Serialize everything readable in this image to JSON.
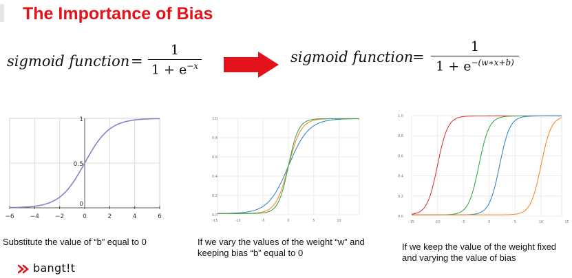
{
  "title": "The Importance of Bias",
  "formula_left": {
    "name": "sigmoid function",
    "eq": "=",
    "numerator": "1",
    "denominator_base": "1 + e",
    "exponent": "−x"
  },
  "formula_right": {
    "name": "sigmoid function",
    "eq": "=",
    "numerator": "1",
    "denominator_base": "1 + e",
    "exponent": "−(w∗x+b)"
  },
  "arrow_color": "#e3121b",
  "captions": [
    "Substitute the value of “b” equal to 0",
    "If we vary the values of the weight “w” and keeping bias “b” equal to 0",
    "If we keep the value of the weight fixed and varying the value of bias"
  ],
  "logo_text": "bangt!t",
  "chart_data": [
    {
      "type": "line",
      "x_ticks": [
        "−6",
        "−4",
        "−2",
        "0",
        "2",
        "4",
        "6"
      ],
      "y_ticks": [
        "0",
        "0.5",
        "1"
      ],
      "xlim": [
        -6,
        6
      ],
      "ylim": [
        0,
        1
      ],
      "grid": true,
      "series": [
        {
          "color": "#8a80c0",
          "w": 1,
          "b": 0
        }
      ]
    },
    {
      "type": "line",
      "x_ticks": [
        "-15",
        "-10",
        "-5",
        "0",
        "5",
        "10",
        "15"
      ],
      "y_ticks": [
        "0.0",
        "0.2",
        "0.4",
        "0.6",
        "0.8",
        "1.0"
      ],
      "xlim": [
        -14,
        14
      ],
      "ylim": [
        0,
        1
      ],
      "grid": true,
      "series": [
        {
          "color": "#3a86c4",
          "w": 0.5,
          "b": 0
        },
        {
          "color": "#f28a2e",
          "w": 0.8,
          "b": 0
        },
        {
          "color": "#3aa84a",
          "w": 1.0,
          "b": 0
        }
      ]
    },
    {
      "type": "line",
      "x_ticks": [
        "-15",
        "-10",
        "-5",
        "0",
        "5",
        "10",
        "15"
      ],
      "y_ticks": [
        "0.0",
        "0.2",
        "0.4",
        "0.6",
        "0.8",
        "1.0"
      ],
      "xlim": [
        -15,
        14
      ],
      "ylim": [
        0,
        1
      ],
      "grid": true,
      "series": [
        {
          "color": "#d93a3a",
          "w": 1,
          "b": 10
        },
        {
          "color": "#3aa84a",
          "w": 1,
          "b": 2
        },
        {
          "color": "#3a86c4",
          "w": 1,
          "b": -2
        },
        {
          "color": "#f28a2e",
          "w": 1,
          "b": -10
        }
      ]
    }
  ]
}
